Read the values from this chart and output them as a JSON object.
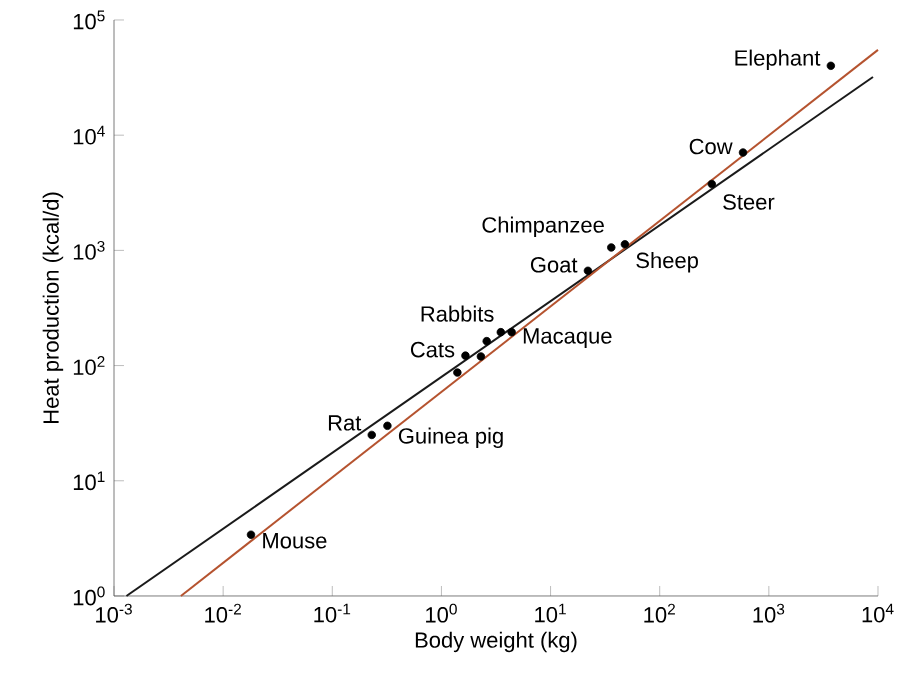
{
  "chart_data": {
    "type": "scatter",
    "xlabel": "Body weight (kg)",
    "ylabel": "Heat production (kcal/d)",
    "log": "xy",
    "grid": false,
    "xlim": [
      0.001,
      10000
    ],
    "ylim": [
      1,
      100000
    ],
    "xticks": [
      {
        "value": 0.001,
        "label": "10$^{-3}$"
      },
      {
        "value": 0.01,
        "label": "10$^{-2}$"
      },
      {
        "value": 0.1,
        "label": "10$^{-1}$"
      },
      {
        "value": 1,
        "label": "10$^{0}$"
      },
      {
        "value": 10,
        "label": "10$^{1}$"
      },
      {
        "value": 100,
        "label": "10$^{2}$"
      },
      {
        "value": 1000,
        "label": "10$^{3}$"
      },
      {
        "value": 10000,
        "label": "10$^{4}$"
      }
    ],
    "yticks": [
      {
        "value": 1,
        "label": "10$^{0}$"
      },
      {
        "value": 10,
        "label": "10$^{1}$"
      },
      {
        "value": 100,
        "label": "10$^{2}$"
      },
      {
        "value": 1000,
        "label": "10$^{3}$"
      },
      {
        "value": 10000,
        "label": "10$^{4}$"
      },
      {
        "value": 100000,
        "label": "10$^{5}$"
      }
    ],
    "series": [
      {
        "type": "line",
        "marker": "none",
        "color": "#1a1a1a",
        "x": [
          0.0013,
          9000
        ],
        "values": [
          1,
          32000
        ]
      },
      {
        "type": "line",
        "marker": "none",
        "color": "#b5532f",
        "x": [
          0.0041,
          10000
        ],
        "values": [
          1,
          55000
        ]
      },
      {
        "marker": "circle",
        "color": "#000000",
        "x": [
          0.018,
          0.23,
          0.32,
          1.4,
          1.66,
          2.3,
          2.6,
          3.5,
          4.4,
          22,
          36,
          48,
          300,
          580,
          3700
        ],
        "values": [
          3.4,
          25,
          30,
          87,
          122,
          120,
          163,
          195,
          195,
          665,
          1060,
          1130,
          3770,
          7070,
          40000
        ]
      }
    ],
    "annotations": [
      {
        "text": "Mouse",
        "x": 0.018,
        "y": 3.4
      },
      {
        "text": "Rat",
        "x": 0.23,
        "y": 25
      },
      {
        "text": "Guinea pig",
        "x": 0.32,
        "y": 30
      },
      {
        "text": "Cats",
        "x": 1.66,
        "y": 122
      },
      {
        "text": "Rabbits",
        "x": 3.5,
        "y": 195
      },
      {
        "text": "Macaque",
        "x": 4.4,
        "y": 195
      },
      {
        "text": "Goat",
        "x": 22,
        "y": 665
      },
      {
        "text": "Chimpanzee",
        "x": 36,
        "y": 1060
      },
      {
        "text": "Sheep",
        "x": 48,
        "y": 1130
      },
      {
        "text": "Steer",
        "x": 300,
        "y": 3770
      },
      {
        "text": "Cow",
        "x": 580,
        "y": 7070
      },
      {
        "text": "Elephant",
        "x": 3700,
        "y": 40000
      }
    ]
  }
}
